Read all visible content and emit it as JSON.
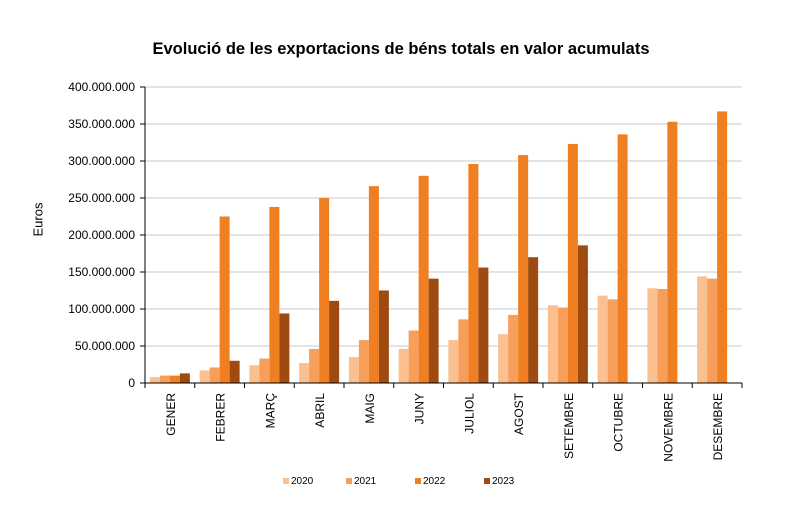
{
  "chart_data": {
    "type": "bar",
    "title": "Evolució de les exportacions de béns totals en valor acumulats",
    "ylabel": "Euros",
    "xlabel": "",
    "ylim": [
      0,
      400000000
    ],
    "yticks": [
      "0",
      "50.000.000",
      "100.000.000",
      "150.000.000",
      "200.000.000",
      "250.000.000",
      "300.000.000",
      "350.000.000",
      "400.000.000"
    ],
    "ytick_values": [
      0,
      50000000,
      100000000,
      150000000,
      200000000,
      250000000,
      300000000,
      350000000,
      400000000
    ],
    "grid": true,
    "legend_position": "bottom",
    "categories": [
      "GENER",
      "FEBRER",
      "MARÇ",
      "ABRIL",
      "MAIG",
      "JUNY",
      "JULIOL",
      "AGOST",
      "SETEMBRE",
      "OCTUBRE",
      "NOVEMBRE",
      "DESEMBRE"
    ],
    "series": [
      {
        "name": "2020",
        "color": "#FAC090",
        "values": [
          8000000,
          17000000,
          24000000,
          27000000,
          35000000,
          46000000,
          58000000,
          66000000,
          105000000,
          118000000,
          128000000,
          144000000
        ]
      },
      {
        "name": "2021",
        "color": "#F79E5B",
        "values": [
          10000000,
          21000000,
          33000000,
          46000000,
          58000000,
          71000000,
          86000000,
          92000000,
          102000000,
          113000000,
          127000000,
          141000000
        ]
      },
      {
        "name": "2022",
        "color": "#F07F22",
        "values": [
          10000000,
          225000000,
          238000000,
          250000000,
          266000000,
          280000000,
          296000000,
          308000000,
          323000000,
          336000000,
          353000000,
          367000000
        ]
      },
      {
        "name": "2023",
        "color": "#9E4A10",
        "values": [
          13000000,
          30000000,
          94000000,
          111000000,
          125000000,
          141000000,
          156000000,
          170000000,
          186000000,
          null,
          null,
          null
        ]
      }
    ]
  }
}
